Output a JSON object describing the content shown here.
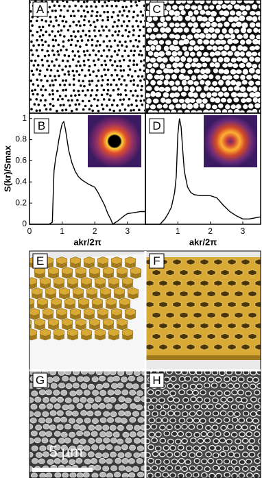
{
  "panel_labels": [
    "A",
    "B",
    "C",
    "D",
    "E",
    "F",
    "G",
    "H"
  ],
  "scale_bar": "5 µm",
  "chart_data": [
    {
      "type": "line",
      "ylabel": "S(kr)/Smax",
      "xlabel": "akr/2π",
      "color": "#000000",
      "xlim": [
        0,
        3.55
      ],
      "ylim": [
        0,
        1.05
      ],
      "xticks": [
        0,
        1,
        2,
        3
      ],
      "yticks": [
        0,
        0.2,
        0.4,
        0.6,
        0.8,
        1
      ],
      "x": [
        0,
        0.6,
        0.7,
        0.75,
        0.8,
        0.85,
        0.9,
        0.95,
        1.0,
        1.05,
        1.1,
        1.15,
        1.2,
        1.3,
        1.4,
        1.5,
        1.6,
        1.8,
        2.0,
        2.1,
        2.2,
        2.3,
        2.4,
        2.5,
        2.55,
        2.7,
        2.9,
        3.0,
        3.2,
        3.4,
        3.55
      ],
      "values": [
        0,
        0,
        0.02,
        0.5,
        0.62,
        0.7,
        0.8,
        0.88,
        0.95,
        0.97,
        0.9,
        0.8,
        0.7,
        0.58,
        0.5,
        0.45,
        0.42,
        0.38,
        0.35,
        0.3,
        0.24,
        0.18,
        0.1,
        0.04,
        0,
        0.03,
        0.08,
        0.1,
        0.11,
        0.12,
        0.12
      ]
    },
    {
      "type": "line",
      "xlabel": "akr/2π",
      "color": "#000000",
      "xlim": [
        0,
        3.55
      ],
      "ylim": [
        0,
        1.05
      ],
      "xticks": [
        0,
        1,
        2,
        3
      ],
      "x": [
        0,
        0.45,
        0.6,
        0.7,
        0.8,
        0.9,
        0.95,
        1.0,
        1.05,
        1.1,
        1.15,
        1.2,
        1.3,
        1.4,
        1.5,
        1.7,
        2.0,
        2.2,
        2.4,
        2.6,
        2.8,
        3.0,
        3.2,
        3.55
      ],
      "values": [
        0,
        0,
        0.05,
        0.1,
        0.16,
        0.3,
        0.45,
        0.85,
        1.0,
        0.92,
        0.7,
        0.5,
        0.35,
        0.3,
        0.28,
        0.27,
        0.27,
        0.25,
        0.18,
        0.12,
        0.08,
        0.05,
        0.05,
        0.07
      ]
    }
  ]
}
